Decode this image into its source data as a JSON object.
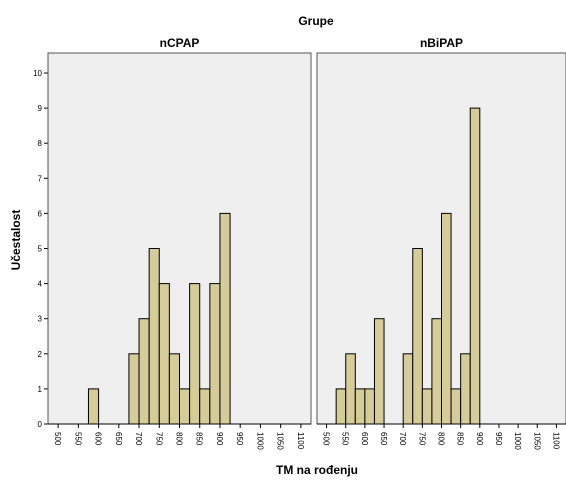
{
  "chart_data": {
    "type": "bar",
    "title": "Grupe",
    "xlabel": "TM na rođenju",
    "ylabel": "Učestalost",
    "ylim": [
      0,
      10
    ],
    "yticks": [
      "0",
      "1",
      "2",
      "3",
      "4",
      "5",
      "6",
      "7",
      "8",
      "9",
      "10"
    ],
    "xticks": [
      "500",
      "550",
      "600",
      "650",
      "700",
      "750",
      "800",
      "850",
      "900",
      "950",
      "1000",
      "1050",
      "1100"
    ],
    "bin_width": 25,
    "bar_color": "#d5cc9a",
    "panel_background": "#efefef",
    "panels": [
      {
        "name": "nCPAP",
        "bins": [
          575,
          675,
          700,
          725,
          750,
          775,
          800,
          825,
          850,
          875,
          900,
          925
        ],
        "values": [
          1,
          2,
          3,
          5,
          4,
          2,
          1,
          4,
          1,
          4,
          6,
          0
        ]
      },
      {
        "name": "nBiPAP",
        "bins": [
          525,
          550,
          575,
          600,
          625,
          650,
          700,
          725,
          750,
          775,
          800,
          825,
          850,
          875,
          900,
          925
        ],
        "values": [
          1,
          2,
          1,
          1,
          3,
          0,
          2,
          5,
          1,
          3,
          6,
          1,
          2,
          9,
          0,
          0
        ]
      }
    ]
  }
}
